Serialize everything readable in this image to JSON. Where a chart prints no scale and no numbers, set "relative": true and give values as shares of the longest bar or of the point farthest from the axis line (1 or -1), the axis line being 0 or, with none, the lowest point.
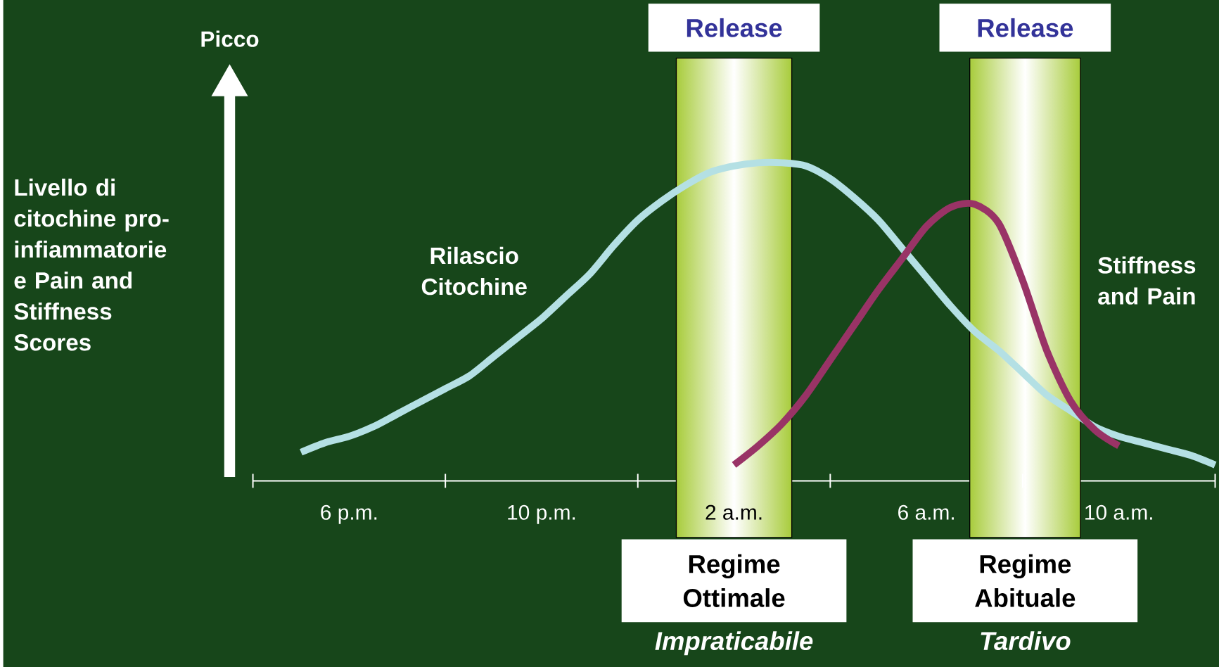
{
  "chart_data": {
    "type": "line",
    "relative": true,
    "legend": false,
    "ylabel": "Livello di citochine pro-infiammatorie e Pain and Stiffness Scores",
    "categories": [
      null,
      null,
      null,
      null,
      "6 p.m.",
      null,
      null,
      null,
      null,
      null,
      null,
      null,
      "10 p.m.",
      null,
      null,
      null,
      null,
      null,
      null,
      null,
      "2 a.m.",
      null,
      null,
      null,
      null,
      null,
      null,
      null,
      "6 a.m.",
      null,
      null,
      null,
      null,
      null,
      null,
      null,
      "10 a.m.",
      null,
      null,
      null,
      null
    ],
    "series": [
      {
        "name": "Rilascio Citochine",
        "color": "#b4e0e4",
        "values": [
          null,
          null,
          0.09,
          0.12,
          0.14,
          0.17,
          0.21,
          0.25,
          0.29,
          0.33,
          0.39,
          0.45,
          0.51,
          0.58,
          0.65,
          0.74,
          0.82,
          0.88,
          0.93,
          0.97,
          0.99,
          1,
          1,
          0.99,
          0.95,
          0.89,
          0.82,
          0.73,
          0.64,
          0.55,
          0.47,
          0.41,
          0.34,
          0.27,
          0.22,
          0.17,
          0.14,
          0.12,
          0.1,
          0.08,
          0.05
        ]
      },
      {
        "name": "Stiffness and Pain",
        "color": "#993366",
        "values": [
          null,
          null,
          null,
          null,
          null,
          null,
          null,
          null,
          null,
          null,
          null,
          null,
          null,
          null,
          null,
          null,
          null,
          null,
          null,
          null,
          0.05,
          0.11,
          0.18,
          0.27,
          0.38,
          0.49,
          0.6,
          0.7,
          0.8,
          0.86,
          0.87,
          0.81,
          0.63,
          0.41,
          0.25,
          0.16,
          0.11,
          null,
          null,
          null,
          null
        ]
      }
    ],
    "annotations": [
      "Picco",
      "Release",
      "Regime Ottimale",
      "Impraticabile",
      "Release",
      "Regime Abituale",
      "Tardivo"
    ]
  }
}
